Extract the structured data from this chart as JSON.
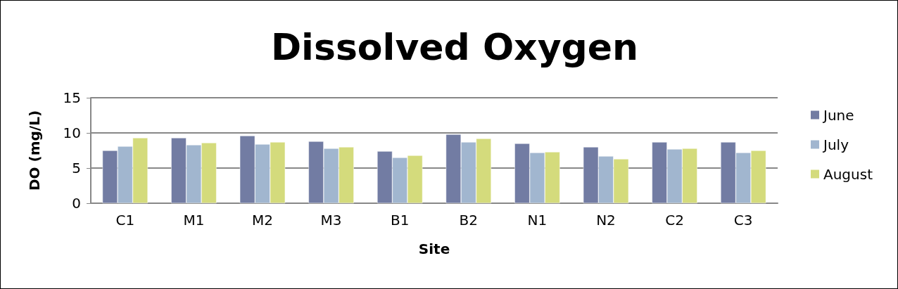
{
  "chart_data": {
    "type": "bar",
    "title": "Dissolved Oxygen",
    "xlabel": "Site",
    "ylabel": "DO (mg/L)",
    "categories": [
      "C1",
      "M1",
      "M2",
      "M3",
      "B1",
      "B2",
      "N1",
      "N2",
      "C2",
      "C3"
    ],
    "series": [
      {
        "name": "June",
        "color": "#727ca3",
        "values": [
          7.5,
          9.3,
          9.6,
          8.8,
          7.4,
          9.8,
          8.5,
          8.0,
          8.7,
          8.7
        ]
      },
      {
        "name": "July",
        "color": "#a1b6cf",
        "values": [
          8.1,
          8.3,
          8.4,
          7.8,
          6.5,
          8.7,
          7.2,
          6.7,
          7.7,
          7.2
        ]
      },
      {
        "name": "August",
        "color": "#d4db7c",
        "values": [
          9.3,
          8.6,
          8.7,
          8.0,
          6.8,
          9.2,
          7.3,
          6.3,
          7.8,
          7.5
        ]
      }
    ],
    "ylim": [
      0,
      15
    ],
    "yticks": [
      0,
      5,
      10,
      15
    ],
    "grid": "y",
    "legend": "right"
  }
}
